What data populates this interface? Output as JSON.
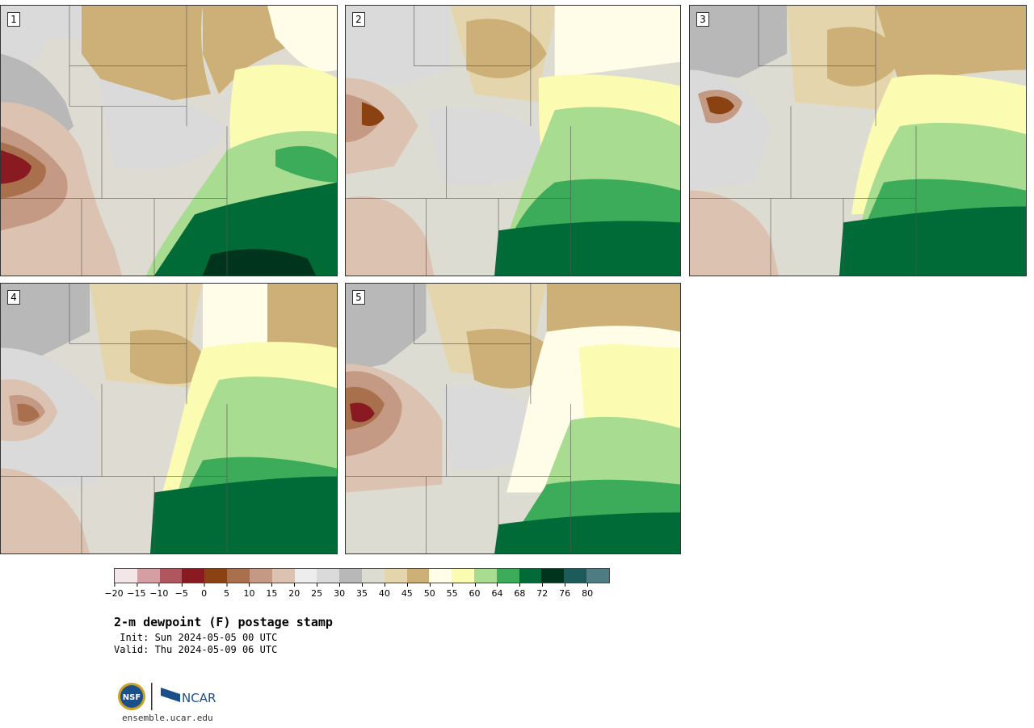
{
  "panels": [
    {
      "number": "1"
    },
    {
      "number": "2"
    },
    {
      "number": "3"
    },
    {
      "number": "4"
    },
    {
      "number": "5"
    }
  ],
  "colorbar": {
    "colors": [
      "#f3e6e6",
      "#d49ea2",
      "#b0565f",
      "#8a1a22",
      "#8a4212",
      "#a8704c",
      "#c49a84",
      "#dcc2b0",
      "#ededed",
      "#dadada",
      "#b8b8b8",
      "#dddcd2",
      "#e4d5ac",
      "#ccb078",
      "#fffde8",
      "#fbfbb2",
      "#a8dc90",
      "#3cab5a",
      "#006b36",
      "#00341c",
      "#1d5a5a",
      "#4d7c82"
    ],
    "ticks": [
      "−20",
      "−15",
      "−10",
      "−5",
      "0",
      "5",
      "10",
      "15",
      "20",
      "25",
      "30",
      "35",
      "40",
      "45",
      "50",
      "55",
      "60",
      "64",
      "68",
      "72",
      "76",
      "80"
    ]
  },
  "title": "2-m dewpoint (F) postage stamp",
  "init": " Init: Sun 2024-05-05 00 UTC",
  "valid": "Valid: Thu 2024-05-09 06 UTC",
  "logo": {
    "nsf": "NSF",
    "ncar": "NCAR"
  },
  "footer_url": "ensemble.ucar.edu"
}
